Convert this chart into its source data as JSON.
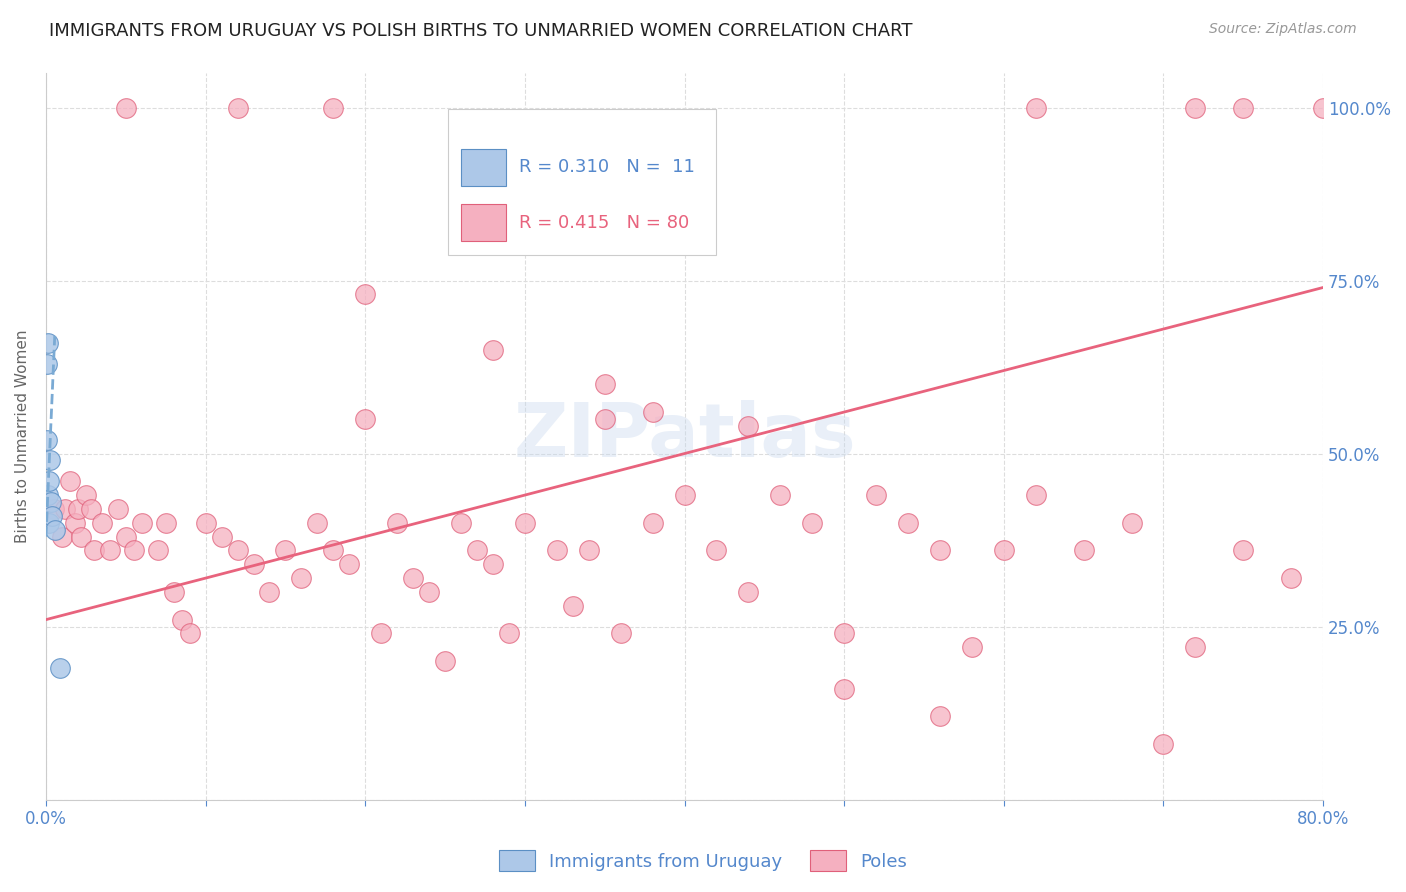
{
  "title": "IMMIGRANTS FROM URUGUAY VS POLISH BIRTHS TO UNMARRIED WOMEN CORRELATION CHART",
  "source": "Source: ZipAtlas.com",
  "ylabel": "Births to Unmarried Women",
  "xlim": [
    0,
    80
  ],
  "ylim": [
    0,
    105
  ],
  "x_tick_vals": [
    0,
    10,
    20,
    30,
    40,
    50,
    60,
    70,
    80
  ],
  "y_tick_vals": [
    0,
    25,
    50,
    75,
    100
  ],
  "y_tick_labels_right": [
    "",
    "25.0%",
    "50.0%",
    "75.0%",
    "100.0%"
  ],
  "legend_line1": "R = 0.310   N =  11",
  "legend_line2": "R = 0.415   N = 80",
  "legend_label1": "Immigrants from Uruguay",
  "legend_label2": "Poles",
  "blue_face": "#adc8e8",
  "blue_edge": "#5b8fc4",
  "pink_face": "#f5b0c0",
  "pink_edge": "#e0607a",
  "blue_line": "#7aaad4",
  "pink_line": "#e8637d",
  "title_color": "#222222",
  "axis_color": "#5588cc",
  "grid_color": "#dddddd",
  "watermark_color": "#c8d8ee",
  "blue_x": [
    0.05,
    0.08,
    0.1,
    0.13,
    0.16,
    0.2,
    0.25,
    0.3,
    0.4,
    0.55,
    0.9
  ],
  "blue_y": [
    63,
    52,
    66,
    44,
    46,
    40,
    49,
    43,
    41,
    39,
    19
  ],
  "blue_trend_x": [
    0.0,
    0.55
  ],
  "blue_trend_y": [
    38,
    67
  ],
  "pink_trend_x": [
    0,
    80
  ],
  "pink_trend_y": [
    26,
    74
  ],
  "pink_x": [
    0.5,
    1.0,
    1.2,
    1.5,
    1.8,
    2.0,
    2.2,
    2.5,
    2.8,
    3.0,
    3.5,
    4.0,
    4.5,
    5.0,
    5.5,
    6.0,
    7.0,
    7.5,
    8.0,
    8.5,
    9.0,
    10.0,
    11.0,
    12.0,
    13.0,
    14.0,
    15.0,
    16.0,
    17.0,
    18.0,
    19.0,
    20.0,
    21.0,
    22.0,
    23.0,
    24.0,
    25.0,
    26.0,
    27.0,
    28.0,
    29.0,
    30.0,
    32.0,
    33.0,
    34.0,
    35.0,
    36.0,
    38.0,
    40.0,
    42.0,
    44.0,
    46.0,
    48.0,
    50.0,
    52.0,
    54.0,
    56.0,
    58.0,
    60.0,
    62.0,
    65.0,
    68.0,
    72.0,
    75.0,
    78.0,
    5.0,
    12.0,
    18.0,
    62.0,
    72.0,
    75.0,
    80.0,
    20.0,
    28.0,
    35.0,
    38.0,
    44.0,
    50.0,
    56.0,
    70.0
  ],
  "pink_y": [
    42,
    38,
    42,
    46,
    40,
    42,
    38,
    44,
    42,
    36,
    40,
    36,
    42,
    38,
    36,
    40,
    36,
    40,
    30,
    26,
    24,
    40,
    38,
    36,
    34,
    30,
    36,
    32,
    40,
    36,
    34,
    55,
    24,
    40,
    32,
    30,
    20,
    40,
    36,
    34,
    24,
    40,
    36,
    28,
    36,
    55,
    24,
    40,
    44,
    36,
    30,
    44,
    40,
    24,
    44,
    40,
    36,
    22,
    36,
    44,
    36,
    40,
    22,
    36,
    32,
    100,
    100,
    100,
    100,
    100,
    100,
    100,
    73,
    65,
    60,
    56,
    54,
    16,
    12,
    8
  ]
}
